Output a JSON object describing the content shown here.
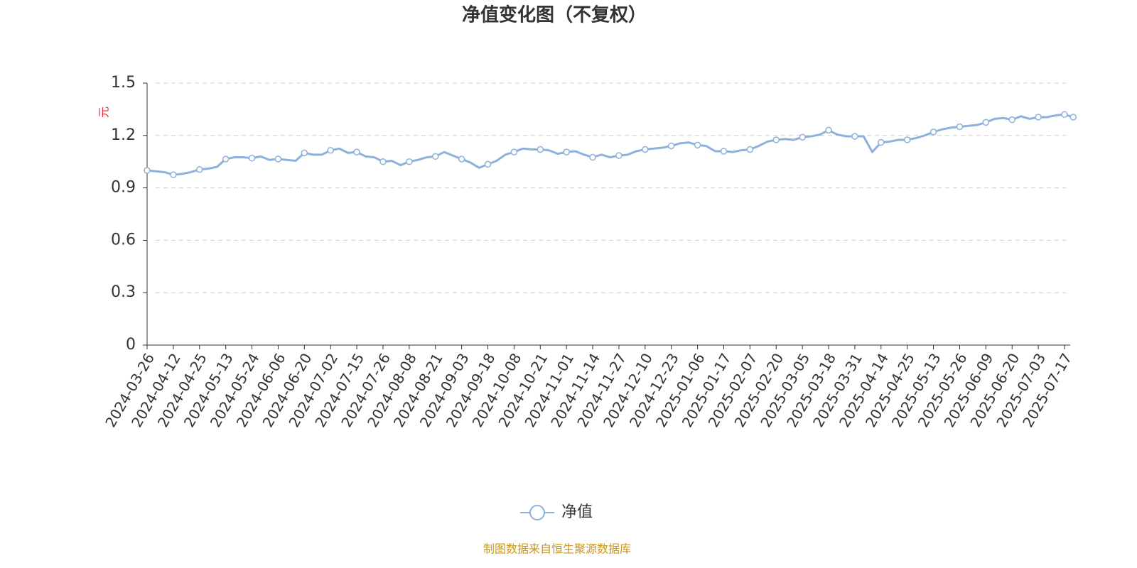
{
  "chart_data": {
    "type": "line",
    "title": "净值变化图（不复权）",
    "y_label": "元",
    "source": "制图数据来自恒生聚源数据库",
    "categories": [
      "2024-03-26",
      null,
      null,
      "2024-04-12",
      null,
      null,
      "2024-04-25",
      null,
      null,
      "2024-05-13",
      null,
      null,
      "2024-05-24",
      null,
      null,
      "2024-06-06",
      null,
      null,
      "2024-06-20",
      null,
      null,
      "2024-07-02",
      null,
      null,
      "2024-07-15",
      null,
      null,
      "2024-07-26",
      null,
      null,
      "2024-08-08",
      null,
      null,
      "2024-08-21",
      null,
      null,
      "2024-09-03",
      null,
      null,
      "2024-09-18",
      null,
      null,
      "2024-10-08",
      null,
      null,
      "2024-10-21",
      null,
      null,
      "2024-11-01",
      null,
      null,
      "2024-11-14",
      null,
      null,
      "2024-11-27",
      null,
      null,
      "2024-12-10",
      null,
      null,
      "2024-12-23",
      null,
      null,
      "2025-01-06",
      null,
      null,
      "2025-01-17",
      null,
      null,
      "2025-02-07",
      null,
      null,
      "2025-02-20",
      null,
      null,
      "2025-03-05",
      null,
      null,
      "2025-03-18",
      null,
      null,
      "2025-03-31",
      null,
      null,
      "2025-04-14",
      null,
      null,
      "2025-04-25",
      null,
      null,
      "2025-05-13",
      null,
      null,
      "2025-05-26",
      null,
      null,
      "2025-06-09",
      null,
      null,
      "2025-06-20",
      null,
      null,
      "2025-07-03",
      null,
      null,
      "2025-07-17",
      null
    ],
    "series": [
      {
        "name": "净值",
        "color": "#8eb0dc",
        "values": [
          1.0,
          0.995,
          0.99,
          0.975,
          0.98,
          0.99,
          1.005,
          1.01,
          1.02,
          1.065,
          1.075,
          1.075,
          1.07,
          1.08,
          1.06,
          1.065,
          1.06,
          1.055,
          1.1,
          1.09,
          1.09,
          1.115,
          1.125,
          1.1,
          1.105,
          1.08,
          1.075,
          1.05,
          1.055,
          1.03,
          1.05,
          1.06,
          1.075,
          1.08,
          1.105,
          1.085,
          1.065,
          1.045,
          1.015,
          1.035,
          1.055,
          1.09,
          1.105,
          1.125,
          1.12,
          1.12,
          1.115,
          1.095,
          1.105,
          1.11,
          1.09,
          1.075,
          1.09,
          1.075,
          1.085,
          1.09,
          1.11,
          1.12,
          1.125,
          1.13,
          1.14,
          1.155,
          1.16,
          1.145,
          1.14,
          1.11,
          1.11,
          1.105,
          1.115,
          1.12,
          1.14,
          1.165,
          1.175,
          1.18,
          1.175,
          1.19,
          1.195,
          1.205,
          1.23,
          1.205,
          1.195,
          1.195,
          1.195,
          1.105,
          1.16,
          1.165,
          1.175,
          1.175,
          1.185,
          1.2,
          1.22,
          1.235,
          1.245,
          1.25,
          1.255,
          1.26,
          1.275,
          1.295,
          1.3,
          1.29,
          1.31,
          1.295,
          1.305,
          1.305,
          1.315,
          1.32,
          1.305
        ]
      }
    ],
    "ylim": [
      0,
      1.5
    ],
    "yticks": [
      0,
      0.3,
      0.6,
      0.9,
      1.2,
      1.5
    ],
    "grid": true,
    "legend": "bottom"
  }
}
